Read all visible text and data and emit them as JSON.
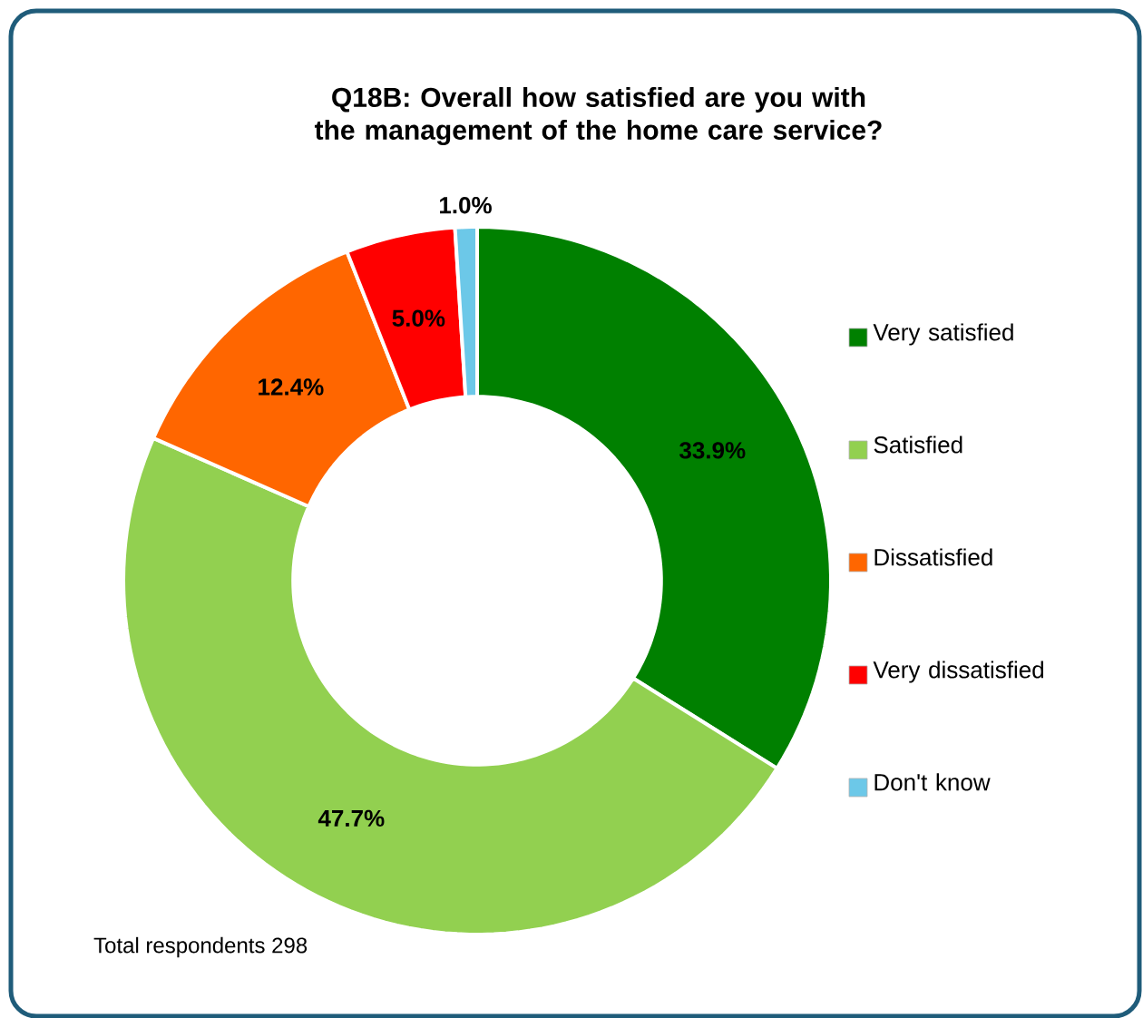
{
  "chart_data": {
    "type": "donut",
    "title": "Q18B: Overall how satisfied are you with the management of the home care service?",
    "categories": [
      "Very satisfied",
      "Satisfied",
      "Dissatisfied",
      "Very dissatisfied",
      "Don't know"
    ],
    "values": [
      33.9,
      47.7,
      12.4,
      5.0,
      1.0
    ],
    "colors": [
      "#008000",
      "#92d050",
      "#ff6600",
      "#ff0000",
      "#6cc8e8"
    ],
    "value_labels": [
      "33.9%",
      "47.7%",
      "12.4%",
      "5.0%",
      "1.0%"
    ],
    "legend": "right",
    "annotations": [
      "Total respondents 298"
    ]
  }
}
